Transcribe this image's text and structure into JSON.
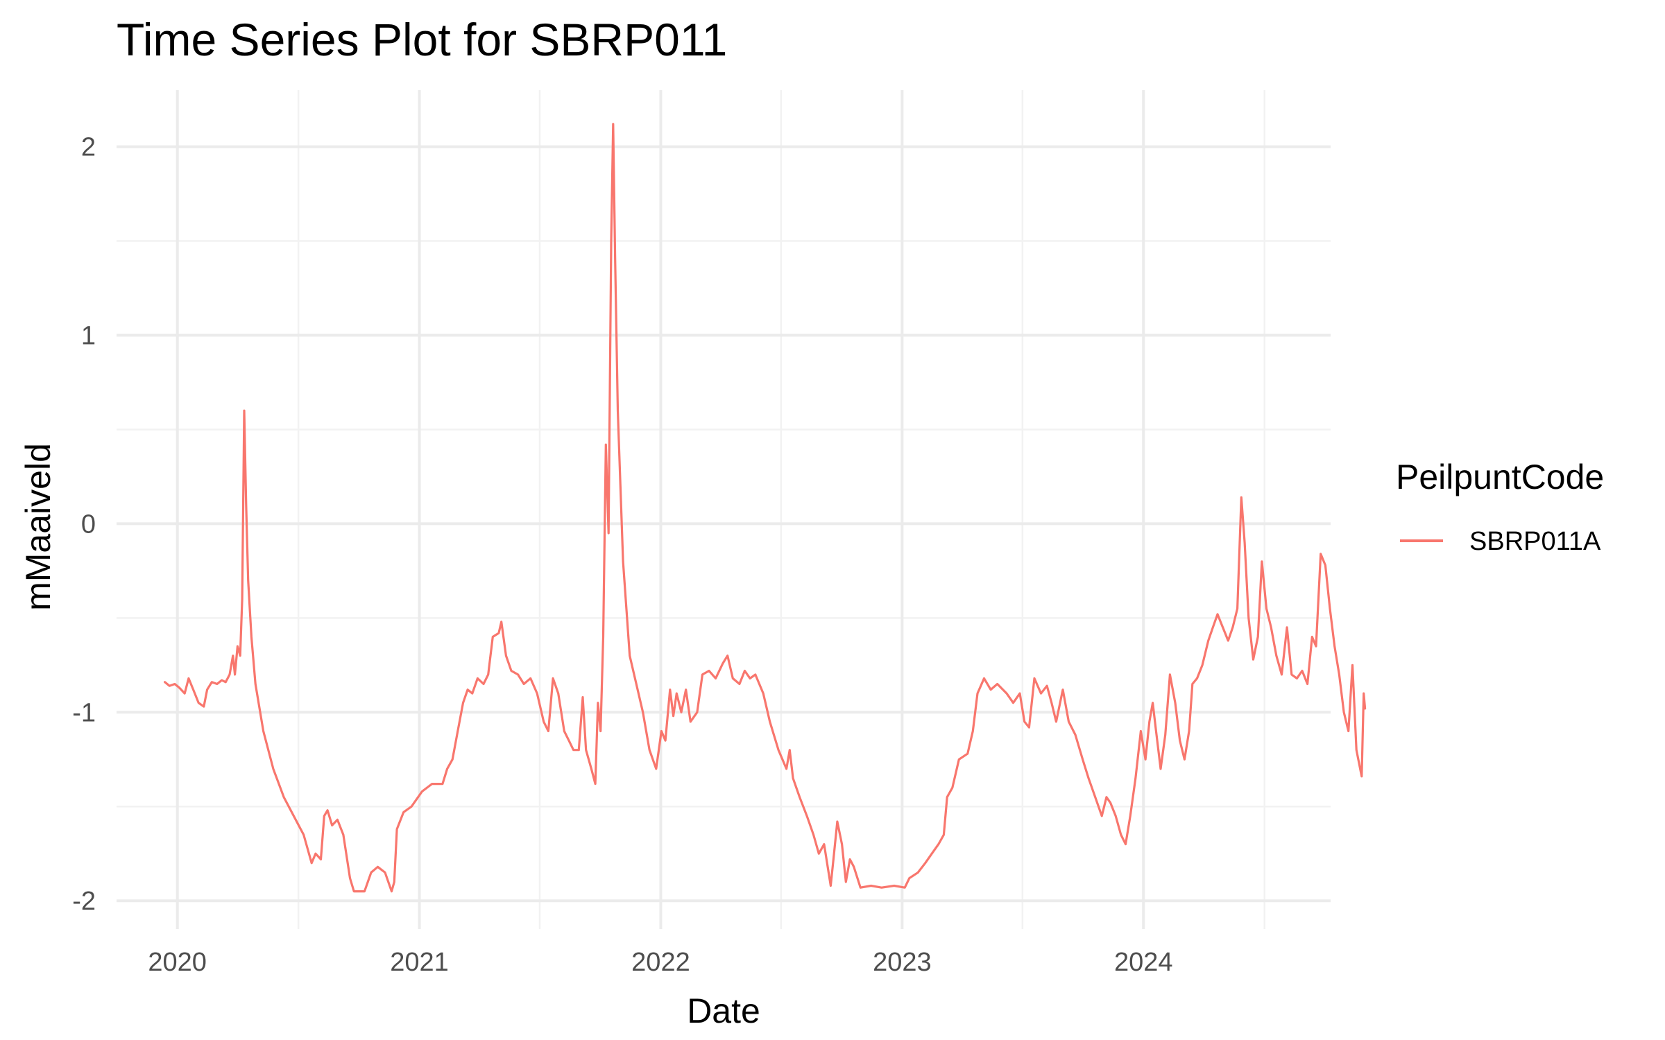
{
  "chart_data": {
    "type": "line",
    "title": "Time Series Plot for SBRP011",
    "xlabel": "Date",
    "ylabel": "mMaaiveld",
    "legend_title": "PeilpuntCode",
    "legend_position": "right",
    "grid": true,
    "x_ticks": [
      "2020",
      "2021",
      "2022",
      "2023",
      "2024"
    ],
    "y_ticks": [
      "-2",
      "-1",
      "0",
      "1",
      "2"
    ],
    "xlim": [
      "2019-10-01",
      "2024-10-10"
    ],
    "ylim": [
      -2.15,
      2.3
    ],
    "series": [
      {
        "name": "SBRP011A",
        "color": "#F8766D",
        "points": [
          [
            "2019-12-13",
            -0.84
          ],
          [
            "2019-12-20",
            -0.86
          ],
          [
            "2019-12-28",
            -0.85
          ],
          [
            "2020-01-04",
            -0.87
          ],
          [
            "2020-01-12",
            -0.9
          ],
          [
            "2020-01-18",
            -0.82
          ],
          [
            "2020-01-25",
            -0.88
          ],
          [
            "2020-02-02",
            -0.95
          ],
          [
            "2020-02-10",
            -0.97
          ],
          [
            "2020-02-15",
            -0.88
          ],
          [
            "2020-02-22",
            -0.84
          ],
          [
            "2020-03-01",
            -0.85
          ],
          [
            "2020-03-08",
            -0.83
          ],
          [
            "2020-03-14",
            -0.84
          ],
          [
            "2020-03-20",
            -0.8
          ],
          [
            "2020-03-25",
            -0.7
          ],
          [
            "2020-03-28",
            -0.8
          ],
          [
            "2020-04-01",
            -0.65
          ],
          [
            "2020-04-05",
            -0.7
          ],
          [
            "2020-04-08",
            -0.4
          ],
          [
            "2020-04-11",
            0.6
          ],
          [
            "2020-04-14",
            0.1
          ],
          [
            "2020-04-17",
            -0.3
          ],
          [
            "2020-04-22",
            -0.6
          ],
          [
            "2020-04-28",
            -0.85
          ],
          [
            "2020-05-10",
            -1.1
          ],
          [
            "2020-05-25",
            -1.3
          ],
          [
            "2020-06-10",
            -1.45
          ],
          [
            "2020-06-25",
            -1.55
          ],
          [
            "2020-07-10",
            -1.65
          ],
          [
            "2020-07-22",
            -1.8
          ],
          [
            "2020-07-28",
            -1.75
          ],
          [
            "2020-08-05",
            -1.78
          ],
          [
            "2020-08-10",
            -1.55
          ],
          [
            "2020-08-15",
            -1.52
          ],
          [
            "2020-08-22",
            -1.6
          ],
          [
            "2020-08-30",
            -1.57
          ],
          [
            "2020-09-08",
            -1.65
          ],
          [
            "2020-09-18",
            -1.88
          ],
          [
            "2020-09-24",
            -1.95
          ],
          [
            "2020-10-10",
            -1.95
          ],
          [
            "2020-10-20",
            -1.85
          ],
          [
            "2020-10-30",
            -1.82
          ],
          [
            "2020-11-10",
            -1.85
          ],
          [
            "2020-11-20",
            -1.95
          ],
          [
            "2020-11-24",
            -1.9
          ],
          [
            "2020-11-28",
            -1.62
          ],
          [
            "2020-12-08",
            -1.53
          ],
          [
            "2020-12-20",
            -1.5
          ],
          [
            "2021-01-05",
            -1.42
          ],
          [
            "2021-01-20",
            -1.38
          ],
          [
            "2021-02-05",
            -1.38
          ],
          [
            "2021-02-12",
            -1.3
          ],
          [
            "2021-02-20",
            -1.25
          ],
          [
            "2021-02-28",
            -1.1
          ],
          [
            "2021-03-08",
            -0.95
          ],
          [
            "2021-03-15",
            -0.88
          ],
          [
            "2021-03-22",
            -0.9
          ],
          [
            "2021-03-30",
            -0.82
          ],
          [
            "2021-04-08",
            -0.85
          ],
          [
            "2021-04-15",
            -0.8
          ],
          [
            "2021-04-22",
            -0.6
          ],
          [
            "2021-05-01",
            -0.58
          ],
          [
            "2021-05-05",
            -0.52
          ],
          [
            "2021-05-12",
            -0.7
          ],
          [
            "2021-05-20",
            -0.78
          ],
          [
            "2021-05-30",
            -0.8
          ],
          [
            "2021-06-08",
            -0.85
          ],
          [
            "2021-06-18",
            -0.82
          ],
          [
            "2021-06-28",
            -0.9
          ],
          [
            "2021-07-08",
            -1.05
          ],
          [
            "2021-07-15",
            -1.1
          ],
          [
            "2021-07-22",
            -0.82
          ],
          [
            "2021-07-30",
            -0.9
          ],
          [
            "2021-08-08",
            -1.1
          ],
          [
            "2021-08-15",
            -1.15
          ],
          [
            "2021-08-22",
            -1.2
          ],
          [
            "2021-08-30",
            -1.2
          ],
          [
            "2021-09-05",
            -0.92
          ],
          [
            "2021-09-10",
            -1.2
          ],
          [
            "2021-09-18",
            -1.3
          ],
          [
            "2021-09-24",
            -1.38
          ],
          [
            "2021-09-28",
            -0.95
          ],
          [
            "2021-10-02",
            -1.1
          ],
          [
            "2021-10-06",
            -0.6
          ],
          [
            "2021-10-10",
            0.42
          ],
          [
            "2021-10-14",
            -0.05
          ],
          [
            "2021-10-18",
            1.5
          ],
          [
            "2021-10-21",
            2.12
          ],
          [
            "2021-10-24",
            1.4
          ],
          [
            "2021-10-28",
            0.6
          ],
          [
            "2021-11-05",
            -0.2
          ],
          [
            "2021-11-15",
            -0.7
          ],
          [
            "2021-11-25",
            -0.85
          ],
          [
            "2021-12-05",
            -1.0
          ],
          [
            "2021-12-15",
            -1.2
          ],
          [
            "2021-12-25",
            -1.3
          ],
          [
            "2022-01-02",
            -1.1
          ],
          [
            "2022-01-08",
            -1.15
          ],
          [
            "2022-01-15",
            -0.88
          ],
          [
            "2022-01-20",
            -1.02
          ],
          [
            "2022-01-25",
            -0.9
          ],
          [
            "2022-02-01",
            -1.0
          ],
          [
            "2022-02-08",
            -0.88
          ],
          [
            "2022-02-15",
            -1.05
          ],
          [
            "2022-02-25",
            -1.0
          ],
          [
            "2022-03-05",
            -0.8
          ],
          [
            "2022-03-15",
            -0.78
          ],
          [
            "2022-03-25",
            -0.82
          ],
          [
            "2022-04-05",
            -0.74
          ],
          [
            "2022-04-12",
            -0.7
          ],
          [
            "2022-04-20",
            -0.82
          ],
          [
            "2022-04-30",
            -0.85
          ],
          [
            "2022-05-08",
            -0.78
          ],
          [
            "2022-05-16",
            -0.82
          ],
          [
            "2022-05-24",
            -0.8
          ],
          [
            "2022-06-05",
            -0.9
          ],
          [
            "2022-06-15",
            -1.05
          ],
          [
            "2022-06-28",
            -1.2
          ],
          [
            "2022-07-10",
            -1.3
          ],
          [
            "2022-07-15",
            -1.2
          ],
          [
            "2022-07-20",
            -1.35
          ],
          [
            "2022-07-30",
            -1.45
          ],
          [
            "2022-08-10",
            -1.55
          ],
          [
            "2022-08-20",
            -1.65
          ],
          [
            "2022-08-28",
            -1.75
          ],
          [
            "2022-09-05",
            -1.7
          ],
          [
            "2022-09-15",
            -1.92
          ],
          [
            "2022-09-20",
            -1.75
          ],
          [
            "2022-09-25",
            -1.58
          ],
          [
            "2022-10-02",
            -1.7
          ],
          [
            "2022-10-08",
            -1.9
          ],
          [
            "2022-10-14",
            -1.78
          ],
          [
            "2022-10-20",
            -1.82
          ],
          [
            "2022-10-30",
            -1.93
          ],
          [
            "2022-11-15",
            -1.92
          ],
          [
            "2022-12-01",
            -1.93
          ],
          [
            "2022-12-20",
            -1.92
          ],
          [
            "2023-01-05",
            -1.93
          ],
          [
            "2023-01-12",
            -1.88
          ],
          [
            "2023-01-25",
            -1.85
          ],
          [
            "2023-02-05",
            -1.8
          ],
          [
            "2023-02-15",
            -1.75
          ],
          [
            "2023-02-25",
            -1.7
          ],
          [
            "2023-03-05",
            -1.65
          ],
          [
            "2023-03-10",
            -1.45
          ],
          [
            "2023-03-18",
            -1.4
          ],
          [
            "2023-03-28",
            -1.25
          ],
          [
            "2023-04-10",
            -1.22
          ],
          [
            "2023-04-18",
            -1.1
          ],
          [
            "2023-04-25",
            -0.9
          ],
          [
            "2023-05-05",
            -0.82
          ],
          [
            "2023-05-15",
            -0.88
          ],
          [
            "2023-05-25",
            -0.85
          ],
          [
            "2023-06-08",
            -0.9
          ],
          [
            "2023-06-18",
            -0.95
          ],
          [
            "2023-06-28",
            -0.9
          ],
          [
            "2023-07-05",
            -1.05
          ],
          [
            "2023-07-12",
            -1.08
          ],
          [
            "2023-07-20",
            -0.82
          ],
          [
            "2023-07-30",
            -0.9
          ],
          [
            "2023-08-08",
            -0.86
          ],
          [
            "2023-08-15",
            -0.95
          ],
          [
            "2023-08-22",
            -1.05
          ],
          [
            "2023-09-01",
            -0.88
          ],
          [
            "2023-09-10",
            -1.05
          ],
          [
            "2023-09-20",
            -1.12
          ],
          [
            "2023-10-01",
            -1.25
          ],
          [
            "2023-10-10",
            -1.35
          ],
          [
            "2023-10-20",
            -1.45
          ],
          [
            "2023-10-30",
            -1.55
          ],
          [
            "2023-11-06",
            -1.45
          ],
          [
            "2023-11-12",
            -1.48
          ],
          [
            "2023-11-20",
            -1.55
          ],
          [
            "2023-11-28",
            -1.65
          ],
          [
            "2023-12-05",
            -1.7
          ],
          [
            "2023-12-12",
            -1.55
          ],
          [
            "2023-12-20",
            -1.35
          ],
          [
            "2023-12-28",
            -1.1
          ],
          [
            "2024-01-04",
            -1.25
          ],
          [
            "2024-01-10",
            -1.05
          ],
          [
            "2024-01-15",
            -0.95
          ],
          [
            "2024-01-20",
            -1.1
          ],
          [
            "2024-01-27",
            -1.3
          ],
          [
            "2024-02-03",
            -1.12
          ],
          [
            "2024-02-10",
            -0.8
          ],
          [
            "2024-02-18",
            -0.95
          ],
          [
            "2024-02-25",
            -1.15
          ],
          [
            "2024-03-03",
            -1.25
          ],
          [
            "2024-03-10",
            -1.1
          ],
          [
            "2024-03-15",
            -0.85
          ],
          [
            "2024-03-22",
            -0.82
          ],
          [
            "2024-03-30",
            -0.75
          ],
          [
            "2024-04-08",
            -0.62
          ],
          [
            "2024-04-15",
            -0.55
          ],
          [
            "2024-04-22",
            -0.48
          ],
          [
            "2024-04-30",
            -0.55
          ],
          [
            "2024-05-08",
            -0.62
          ],
          [
            "2024-05-15",
            -0.55
          ],
          [
            "2024-05-22",
            -0.45
          ],
          [
            "2024-05-28",
            0.14
          ],
          [
            "2024-06-02",
            -0.1
          ],
          [
            "2024-06-08",
            -0.5
          ],
          [
            "2024-06-15",
            -0.72
          ],
          [
            "2024-06-22",
            -0.6
          ],
          [
            "2024-06-28",
            -0.2
          ],
          [
            "2024-07-05",
            -0.45
          ],
          [
            "2024-07-12",
            -0.55
          ],
          [
            "2024-07-20",
            -0.7
          ],
          [
            "2024-07-28",
            -0.8
          ],
          [
            "2024-08-05",
            -0.55
          ],
          [
            "2024-08-12",
            -0.8
          ],
          [
            "2024-08-20",
            -0.82
          ],
          [
            "2024-08-28",
            -0.78
          ],
          [
            "2024-09-05",
            -0.85
          ],
          [
            "2024-09-12",
            -0.6
          ],
          [
            "2024-09-18",
            -0.65
          ],
          [
            "2024-09-25",
            -0.16
          ],
          [
            "2024-10-02",
            -0.22
          ],
          [
            "2024-10-09",
            -0.45
          ],
          [
            "2024-10-16",
            -0.65
          ],
          [
            "2024-10-23",
            -0.8
          ],
          [
            "2024-10-30",
            -1.0
          ],
          [
            "2024-11-06",
            -1.1
          ],
          [
            "2024-11-12",
            -0.75
          ],
          [
            "2024-11-18",
            -1.2
          ],
          [
            "2024-11-26",
            -1.34
          ],
          [
            "2024-11-29",
            -0.9
          ],
          [
            "2024-12-01",
            -0.98
          ]
        ]
      }
    ]
  }
}
